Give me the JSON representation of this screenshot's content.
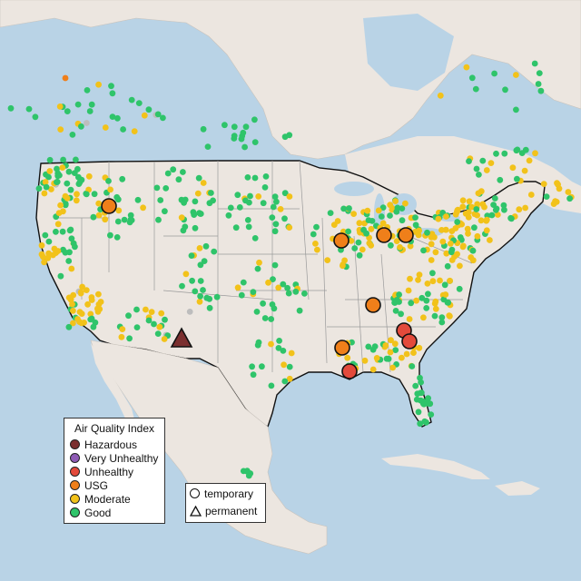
{
  "legend_aqi": {
    "title": "Air Quality Index",
    "items": [
      {
        "label": "Hazardous",
        "color": "#7b2f2f"
      },
      {
        "label": "Very Unhealthy",
        "color": "#8e5bb5"
      },
      {
        "label": "Unhealthy",
        "color": "#e34a3b"
      },
      {
        "label": "USG",
        "color": "#ef7f1a"
      },
      {
        "label": "Moderate",
        "color": "#f2c21a"
      },
      {
        "label": "Good",
        "color": "#2fc46a"
      }
    ]
  },
  "legend_type": {
    "items": [
      {
        "label": "temporary",
        "shape": "circle"
      },
      {
        "label": "permanent",
        "shape": "triangle"
      }
    ]
  },
  "colors": {
    "ocean": "#b9d3e6",
    "land": "#ece6e0",
    "state_lines": "#9a9a9a",
    "border": "#111111",
    "unavailable": "#bdbdbd"
  },
  "monitors_large": [
    {
      "category": "USG",
      "type": "temporary"
    },
    {
      "category": "USG",
      "type": "temporary"
    },
    {
      "category": "USG",
      "type": "temporary"
    },
    {
      "category": "USG",
      "type": "temporary"
    },
    {
      "category": "USG",
      "type": "temporary"
    },
    {
      "category": "USG",
      "type": "temporary"
    },
    {
      "category": "Unhealthy",
      "type": "temporary"
    },
    {
      "category": "Unhealthy",
      "type": "temporary"
    },
    {
      "category": "Unhealthy",
      "type": "temporary"
    },
    {
      "category": "Hazardous",
      "type": "permanent"
    }
  ]
}
